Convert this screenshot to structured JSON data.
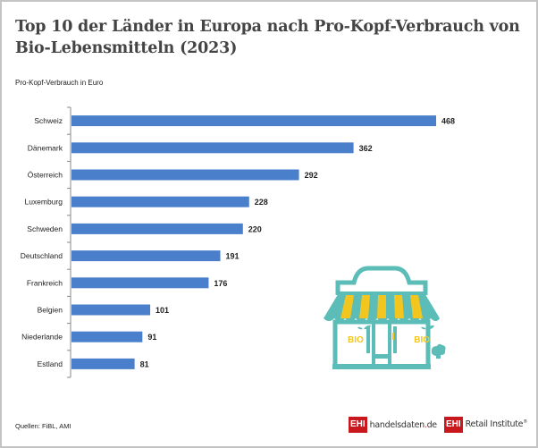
{
  "title": "Top 10 der Länder in Europa nach Pro-Kopf-Verbrauch von Bio-Lebensmitteln (2023)",
  "unit_label": "Pro-Kopf-Verbrauch in Euro",
  "source": "Quellen: FiBL, AMI",
  "logos": {
    "logo1_box": "EHI",
    "logo1_name": "handelsdaten",
    "logo1_dot": ".",
    "logo1_tld": "de",
    "logo2_box": "EHI",
    "logo2_name": "Retail Institute",
    "logo2_mark": "®"
  },
  "illustration": {
    "label_left": "BIO",
    "label_right": "BIO",
    "colors": {
      "teal": "#5bbcb8",
      "yellow": "#f2c61f"
    }
  },
  "colors": {
    "bar": "#4a7fcb",
    "axis": "#8a8a8a",
    "text": "#222222"
  },
  "chart_data": {
    "type": "bar",
    "orientation": "horizontal",
    "title": "Top 10 der Länder in Europa nach Pro-Kopf-Verbrauch von Bio-Lebensmitteln (2023)",
    "xlabel": "Pro-Kopf-Verbrauch in Euro",
    "ylabel": "",
    "categories": [
      "Schweiz",
      "Dänemark",
      "Österreich",
      "Luxemburg",
      "Schweden",
      "Deutschland",
      "Frankreich",
      "Belgien",
      "Niederlande",
      "Estland"
    ],
    "values": [
      468,
      362,
      292,
      228,
      220,
      191,
      176,
      101,
      91,
      81
    ],
    "xlim": [
      0,
      468
    ],
    "grid": false,
    "legend": "none",
    "data_labels": true
  }
}
